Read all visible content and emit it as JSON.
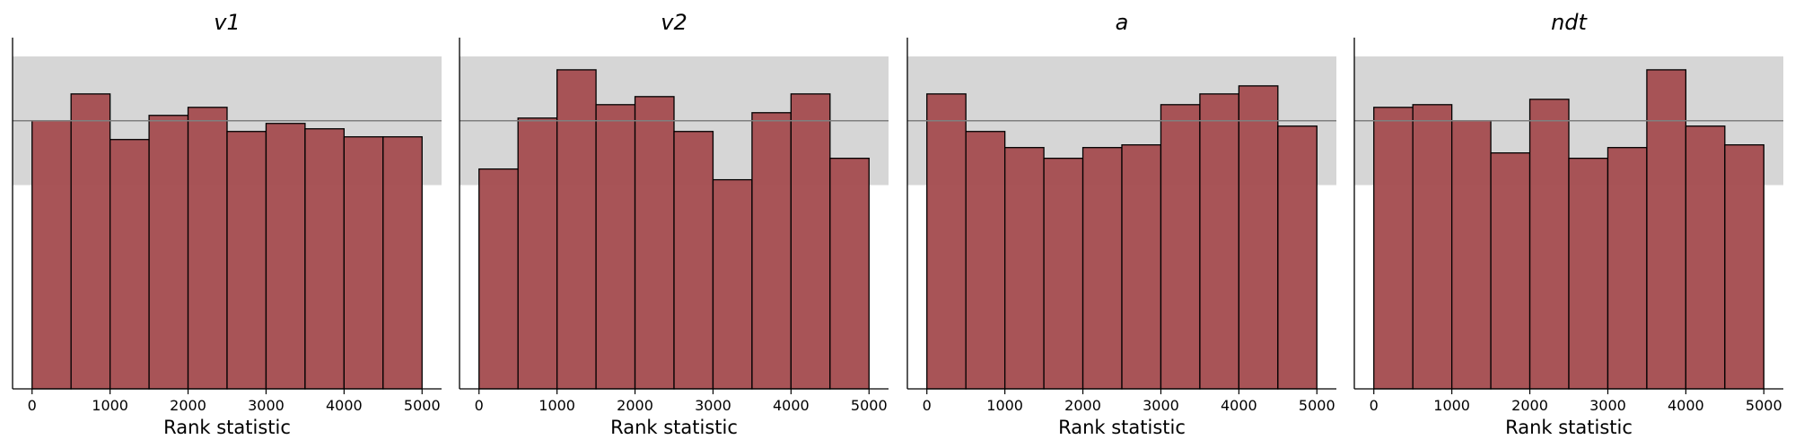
{
  "chart_data": [
    {
      "type": "bar",
      "title": "v1",
      "xlabel": "Rank statistic",
      "ylabel": "",
      "xlim": [
        -250,
        5250
      ],
      "ylim": [
        0,
        1310
      ],
      "x_ticks": [
        "0",
        "1000",
        "2000",
        "3000",
        "4000",
        "5000"
      ],
      "bin_edges": [
        0,
        500,
        1000,
        1500,
        2000,
        2500,
        3000,
        3500,
        4000,
        4500,
        5000
      ],
      "values": [
        1000,
        1100,
        930,
        1020,
        1050,
        960,
        990,
        970,
        940,
        940
      ],
      "band": [
        760,
        1240
      ],
      "reference_line": 1000,
      "colors": {
        "bar": "#a54e52",
        "band": "#d6d6d6",
        "line": "#7f7f7f"
      }
    },
    {
      "type": "bar",
      "title": "v2",
      "xlabel": "Rank statistic",
      "ylabel": "",
      "xlim": [
        -250,
        5250
      ],
      "ylim": [
        0,
        1310
      ],
      "x_ticks": [
        "0",
        "1000",
        "2000",
        "3000",
        "4000",
        "5000"
      ],
      "bin_edges": [
        0,
        500,
        1000,
        1500,
        2000,
        2500,
        3000,
        3500,
        4000,
        4500,
        5000
      ],
      "values": [
        820,
        1010,
        1190,
        1060,
        1090,
        960,
        780,
        1030,
        1100,
        860
      ],
      "band": [
        760,
        1240
      ],
      "reference_line": 1000,
      "colors": {
        "bar": "#a54e52",
        "band": "#d6d6d6",
        "line": "#7f7f7f"
      }
    },
    {
      "type": "bar",
      "title": "a",
      "xlabel": "Rank statistic",
      "ylabel": "",
      "xlim": [
        -250,
        5250
      ],
      "ylim": [
        0,
        1310
      ],
      "x_ticks": [
        "0",
        "1000",
        "2000",
        "3000",
        "4000",
        "5000"
      ],
      "bin_edges": [
        0,
        500,
        1000,
        1500,
        2000,
        2500,
        3000,
        3500,
        4000,
        4500,
        5000
      ],
      "values": [
        1100,
        960,
        900,
        860,
        900,
        910,
        1060,
        1100,
        1130,
        980
      ],
      "band": [
        760,
        1240
      ],
      "reference_line": 1000,
      "colors": {
        "bar": "#a54e52",
        "band": "#d6d6d6",
        "line": "#7f7f7f"
      }
    },
    {
      "type": "bar",
      "title": "ndt",
      "xlabel": "Rank statistic",
      "ylabel": "",
      "xlim": [
        -250,
        5250
      ],
      "ylim": [
        0,
        1310
      ],
      "x_ticks": [
        "0",
        "1000",
        "2000",
        "3000",
        "4000",
        "5000"
      ],
      "bin_edges": [
        0,
        500,
        1000,
        1500,
        2000,
        2500,
        3000,
        3500,
        4000,
        4500,
        5000
      ],
      "values": [
        1050,
        1060,
        1000,
        880,
        1080,
        860,
        900,
        1190,
        980,
        910
      ],
      "band": [
        760,
        1240
      ],
      "reference_line": 1000,
      "colors": {
        "bar": "#a54e52",
        "band": "#d6d6d6",
        "line": "#7f7f7f"
      }
    }
  ]
}
